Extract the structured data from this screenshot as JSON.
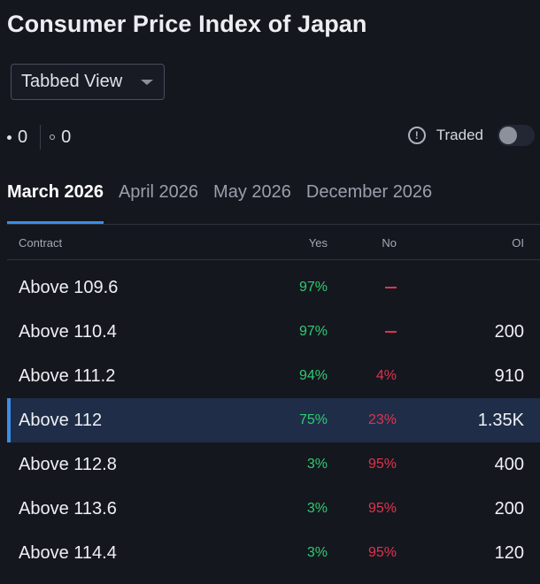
{
  "page": {
    "title": "Consumer Price Index of Japan"
  },
  "view_select": {
    "label": "Tabbed View"
  },
  "counts": {
    "first": "0",
    "second": "0"
  },
  "traded": {
    "label": "Traded",
    "enabled": false
  },
  "tabs": [
    {
      "label": "March 2026",
      "active": true
    },
    {
      "label": "April 2026",
      "active": false
    },
    {
      "label": "May 2026",
      "active": false
    },
    {
      "label": "December 2026",
      "active": false
    }
  ],
  "table": {
    "headers": {
      "contract": "Contract",
      "yes": "Yes",
      "no": "No",
      "oi": "OI"
    },
    "rows": [
      {
        "contract": "Above 109.6",
        "yes": "97%",
        "no": "",
        "oi": ""
      },
      {
        "contract": "Above 110.4",
        "yes": "97%",
        "no": "",
        "oi": "200"
      },
      {
        "contract": "Above 111.2",
        "yes": "94%",
        "no": "4%",
        "oi": "910"
      },
      {
        "contract": "Above 112",
        "yes": "75%",
        "no": "23%",
        "oi": "1.35K"
      },
      {
        "contract": "Above 112.8",
        "yes": "3%",
        "no": "95%",
        "oi": "400"
      },
      {
        "contract": "Above 113.6",
        "yes": "3%",
        "no": "95%",
        "oi": "200"
      },
      {
        "contract": "Above 114.4",
        "yes": "3%",
        "no": "95%",
        "oi": "120"
      }
    ],
    "selected_row": 3
  },
  "colors": {
    "background": "#15171f",
    "accent": "#3a8ee6",
    "yes": "#2ecc71",
    "no": "#e0334c",
    "selected_row": "#1f2d48"
  }
}
